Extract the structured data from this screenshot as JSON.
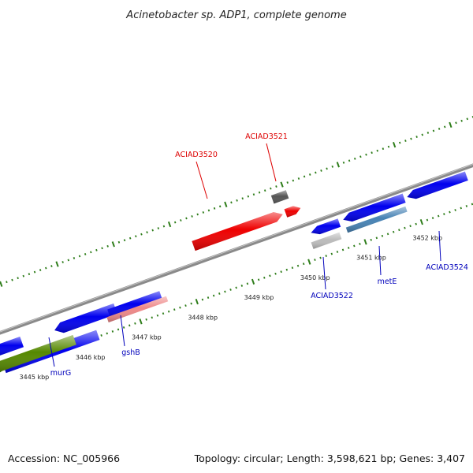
{
  "title": "Acinetobacter sp. ADP1, complete genome",
  "footer": {
    "accession": "Accession: NC_005966",
    "summary": "Topology: circular; Length: 3,598,621 bp; Genes: 3,407"
  },
  "colors": {
    "backbone": "#8a8a8a",
    "tick_mark": "#2e7d1a",
    "label_forward": "#dd0000",
    "label_reverse": "#0000bb",
    "label_line_forward": "#dd0000",
    "label_line_reverse": "#0000bb"
  },
  "scale_ticks": [
    {
      "label": "3445 kbp"
    },
    {
      "label": "3446 kbp"
    },
    {
      "label": "3447 kbp"
    },
    {
      "label": "3448 kbp"
    },
    {
      "label": "3449 kbp"
    },
    {
      "label": "3450 kbp"
    },
    {
      "label": "3451 kbp"
    },
    {
      "label": "3452 kbp"
    }
  ],
  "genes": [
    {
      "label": "ACIAD3520",
      "strand": "forward",
      "color": "#ee0000"
    },
    {
      "label": "ACIAD3521",
      "strand": "forward",
      "color": "#ee0000"
    },
    {
      "label": "",
      "strand": "forward",
      "color": "#555555"
    },
    {
      "label": "murG",
      "strand": "reverse",
      "color": "#0000ee"
    },
    {
      "label": "",
      "strand": "reverse",
      "color": "#0000ee"
    },
    {
      "label": "gshB",
      "strand": "reverse",
      "color": "#0000ee"
    },
    {
      "label": "ACIAD3522",
      "strand": "reverse",
      "color": "#0000ee"
    },
    {
      "label": "metE",
      "strand": "reverse",
      "color": "#0000ee"
    },
    {
      "label": "ACIAD3524",
      "strand": "reverse",
      "color": "#0000ee"
    },
    {
      "label": "",
      "strand": "reverse",
      "color": "#0000ee"
    },
    {
      "label": "",
      "strand": "reverse",
      "color": "#558800"
    },
    {
      "label": "",
      "strand": "reverse",
      "color": "#ee8888"
    },
    {
      "label": "",
      "strand": "reverse",
      "color": "#bbbbbb"
    },
    {
      "label": "",
      "strand": "reverse",
      "color": "#4682b4"
    }
  ]
}
